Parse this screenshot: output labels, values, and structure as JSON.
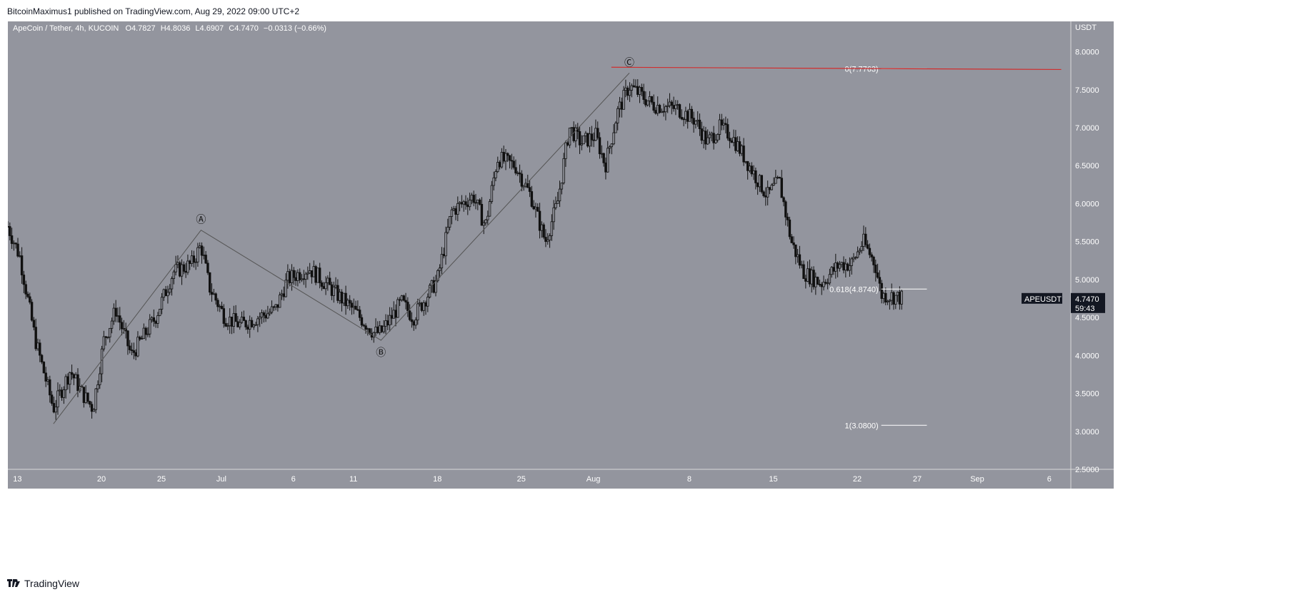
{
  "header": {
    "published_line": "BitcoinMaximus1 published on TradingView.com, Aug 29, 2022 09:00 UTC+2"
  },
  "footer": {
    "brand_icon": "tradingview-logo-icon",
    "brand_text": "TradingView"
  },
  "colors": {
    "background": "#93959e",
    "candle": "#111111",
    "fib_line": "#ffffff",
    "resistance_line": "#d12d2d",
    "wave_line": "#555555",
    "price_badge_bg": "#131722"
  },
  "chart_data": {
    "type": "candlestick",
    "symbol_line": "ApeCoin / Tether, 4h, KUCOIN",
    "ohlc_labels": {
      "o_label": "O",
      "o_value": "4.7827",
      "h_label": "H",
      "h_value": "4.8036",
      "l_label": "L",
      "l_value": "4.6907",
      "c_label": "C",
      "c_value": "4.7470",
      "change": "−0.0313 (−0.66%)"
    },
    "currency": "USDT",
    "ylim": [
      2.5,
      8.4
    ],
    "y_ticks": [
      "8.0000",
      "7.5000",
      "7.0000",
      "6.5000",
      "6.0000",
      "5.5000",
      "5.0000",
      "4.5000",
      "4.0000",
      "3.5000",
      "3.0000",
      "2.5000"
    ],
    "y_tick_values": [
      8.0,
      7.5,
      7.0,
      6.5,
      6.0,
      5.5,
      5.0,
      4.5,
      4.0,
      3.5,
      3.0,
      2.5
    ],
    "x_ticks": [
      "13",
      "20",
      "25",
      "Jul",
      "6",
      "11",
      "18",
      "25",
      "Aug",
      "8",
      "15",
      "22",
      "27",
      "Sep",
      "6"
    ],
    "x_tick_days": [
      13,
      20,
      25,
      30,
      36,
      41,
      48,
      55,
      61,
      69,
      76,
      83,
      88,
      93,
      99
    ],
    "x_range_days": [
      12.2,
      100.8
    ],
    "price_path_keypoints": [
      [
        12.2,
        5.7
      ],
      [
        13.2,
        5.3
      ],
      [
        14.5,
        4.2
      ],
      [
        16.0,
        3.3
      ],
      [
        17.4,
        3.8
      ],
      [
        18.4,
        3.5
      ],
      [
        19.3,
        3.3
      ],
      [
        20.2,
        4.2
      ],
      [
        21.2,
        4.6
      ],
      [
        22.5,
        4.0
      ],
      [
        24.5,
        4.5
      ],
      [
        26.0,
        5.1
      ],
      [
        27.5,
        5.2
      ],
      [
        28.3,
        5.45
      ],
      [
        29.0,
        4.9
      ],
      [
        30.3,
        4.5
      ],
      [
        31.6,
        4.4
      ],
      [
        33.0,
        4.5
      ],
      [
        34.5,
        4.6
      ],
      [
        35.5,
        5.0
      ],
      [
        37.3,
        5.15
      ],
      [
        39.0,
        4.9
      ],
      [
        41.0,
        4.6
      ],
      [
        42.7,
        4.3
      ],
      [
        43.3,
        4.3
      ],
      [
        45.0,
        4.7
      ],
      [
        46.0,
        4.5
      ],
      [
        48.0,
        5.0
      ],
      [
        49.2,
        5.9
      ],
      [
        51.0,
        6.1
      ],
      [
        52.0,
        5.7
      ],
      [
        53.0,
        6.6
      ],
      [
        54.5,
        6.5
      ],
      [
        55.8,
        6.1
      ],
      [
        57.0,
        5.5
      ],
      [
        58.0,
        6.0
      ],
      [
        59.0,
        7.0
      ],
      [
        60.0,
        6.8
      ],
      [
        61.2,
        6.9
      ],
      [
        62.0,
        6.5
      ],
      [
        63.0,
        7.2
      ],
      [
        64.0,
        7.55
      ],
      [
        66.0,
        7.3
      ],
      [
        68.0,
        7.25
      ],
      [
        69.5,
        7.1
      ],
      [
        70.5,
        6.8
      ],
      [
        71.5,
        7.0
      ],
      [
        72.5,
        6.9
      ],
      [
        74.0,
        6.5
      ],
      [
        75.5,
        6.1
      ],
      [
        76.5,
        6.3
      ],
      [
        77.5,
        5.5
      ],
      [
        78.5,
        5.1
      ],
      [
        80.0,
        4.95
      ],
      [
        81.5,
        5.2
      ],
      [
        82.5,
        5.2
      ],
      [
        83.5,
        5.5
      ],
      [
        84.5,
        5.2
      ],
      [
        85.0,
        4.8
      ],
      [
        86.0,
        4.78
      ],
      [
        86.8,
        4.75
      ]
    ],
    "current_price": {
      "symbol": "APEUSDT",
      "price": "4.7470",
      "countdown": "59:43"
    },
    "wave_labels": [
      {
        "label": "Ⓐ",
        "day": 28.3,
        "price": 5.65
      },
      {
        "label": "Ⓑ",
        "day": 43.3,
        "price": 4.2
      },
      {
        "label": "Ⓒ",
        "day": 64.0,
        "price": 7.72
      }
    ],
    "wave_line_points": [
      [
        16.0,
        3.1
      ],
      [
        28.3,
        5.65
      ],
      [
        43.3,
        4.2
      ],
      [
        64.0,
        7.72
      ]
    ],
    "fib_levels": [
      {
        "text": "0(7.7763)",
        "price": 7.7763
      },
      {
        "text": "0.618(4.8740)",
        "price": 4.874
      },
      {
        "text": "1(3.0800)",
        "price": 3.08
      }
    ],
    "resistance": {
      "price": 7.7763,
      "from_day": 62.5,
      "to_day": 100.0
    }
  }
}
